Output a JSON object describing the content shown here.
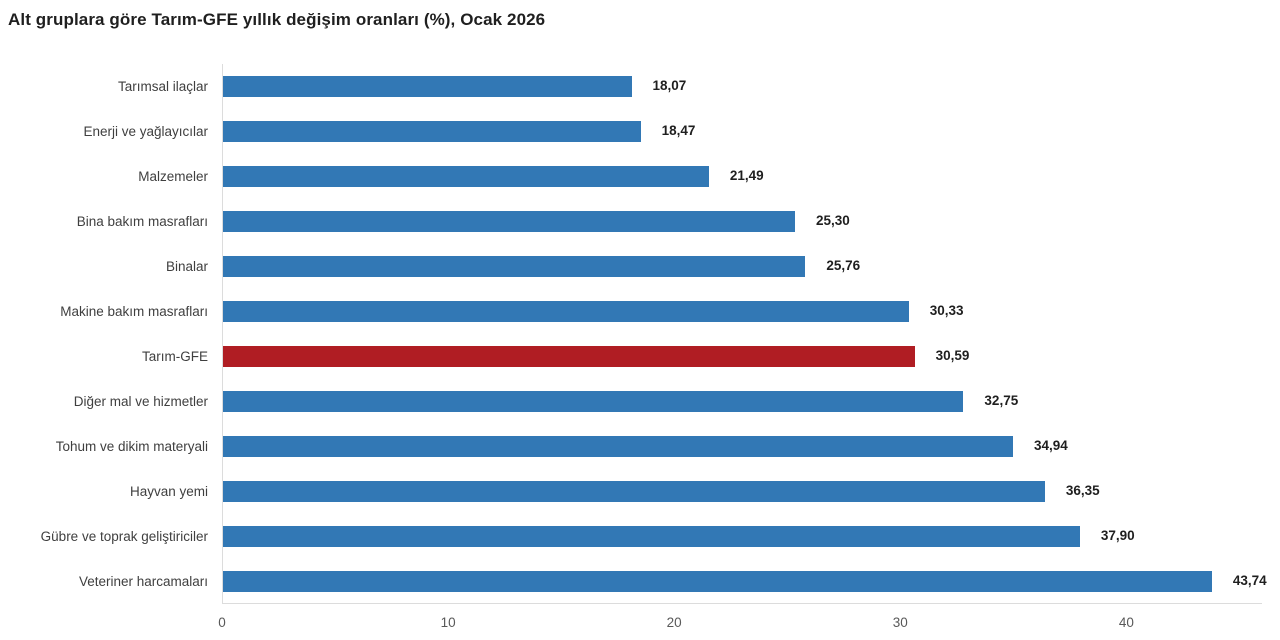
{
  "chart_data": {
    "type": "bar",
    "orientation": "horizontal",
    "title": "Alt gruplara göre Tarım-GFE yıllık değişim oranları (%), Ocak 2026",
    "categories": [
      "Tarımsal ilaçlar",
      "Enerji ve yağlayıcılar",
      "Malzemeler",
      "Bina bakım masrafları",
      "Binalar",
      "Makine bakım masrafları",
      "Tarım-GFE",
      "Diğer mal ve hizmetler",
      "Tohum ve dikim materyali",
      "Hayvan yemi",
      "Gübre ve toprak geliştiriciler",
      "Veteriner harcamaları"
    ],
    "values": [
      18.07,
      18.47,
      21.49,
      25.3,
      25.76,
      30.33,
      30.59,
      32.75,
      34.94,
      36.35,
      37.9,
      43.74
    ],
    "value_labels": [
      "18,07",
      "18,47",
      "21,49",
      "25,30",
      "25,76",
      "30,33",
      "30,59",
      "32,75",
      "34,94",
      "36,35",
      "37,90",
      "43,74"
    ],
    "highlight_index": 6,
    "highlight_category": "Tarım-GFE",
    "x_ticks": [
      0,
      10,
      20,
      30,
      40
    ],
    "xlim": [
      0,
      46
    ],
    "grid": false,
    "legend": false,
    "colors": {
      "bar": "#3278b5",
      "highlight_bar": "#b01d23",
      "axis_line": "#dcdcdc",
      "title_text": "#1f1f1f",
      "category_text": "#3f3f3f",
      "value_text": "#1f1f1f",
      "tick_text": "#595959",
      "background": "#ffffff"
    }
  }
}
